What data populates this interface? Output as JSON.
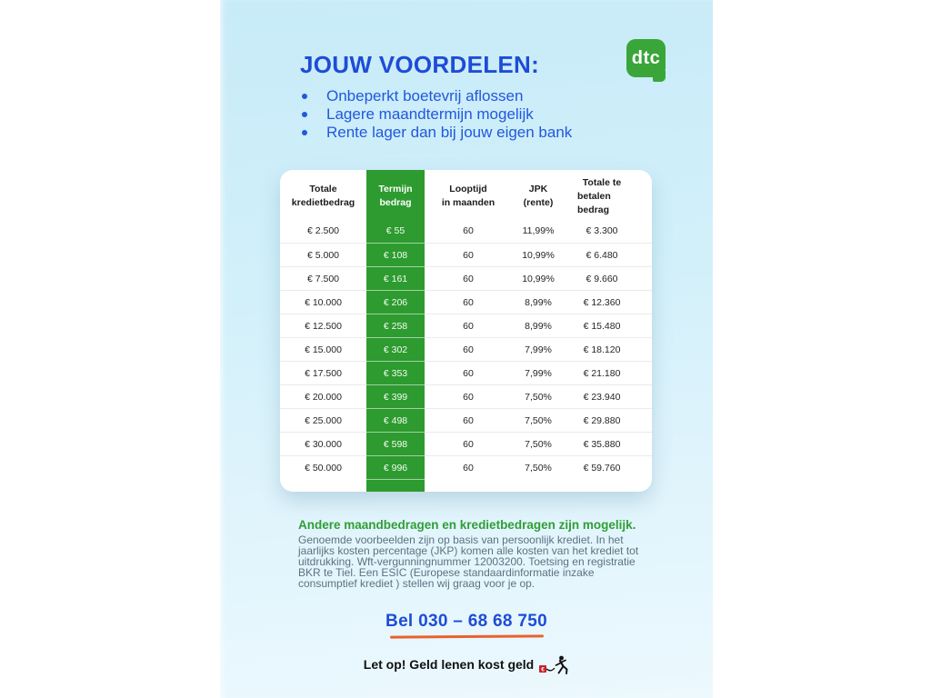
{
  "header": {
    "title": "JOUW VOORDELEN:",
    "benefits": [
      "Onbeperkt boetevrij aflossen",
      "Lagere maandtermijn mogelijk",
      "Rente lager dan bij jouw eigen bank"
    ]
  },
  "logo": {
    "text": "dtc",
    "color": "#3aa639"
  },
  "table": {
    "headers": [
      {
        "top": "Totale",
        "bottom": "kredietbedrag"
      },
      {
        "top": "Termijn",
        "bottom": "bedrag",
        "highlighted": true
      },
      {
        "top": "Looptijd",
        "bottom": "in maanden"
      },
      {
        "top": "JPK",
        "bottom": "(rente)"
      },
      {
        "top": "Totale te",
        "bottom": "betalen bedrag"
      }
    ],
    "columns": [
      "Totale kredietbedrag",
      "Termijn bedrag",
      "Looptijd in maanden",
      "JPK (rente)",
      "Totale te betalen bedrag"
    ],
    "rows": [
      [
        "€ 2.500",
        "€ 55",
        "60",
        "11,99%",
        "€ 3.300"
      ],
      [
        "€ 5.000",
        "€ 108",
        "60",
        "10,99%",
        "€ 6.480"
      ],
      [
        "€ 7.500",
        "€ 161",
        "60",
        "10,99%",
        "€ 9.660"
      ],
      [
        "€ 10.000",
        "€ 206",
        "60",
        "8,99%",
        "€ 12.360"
      ],
      [
        "€ 12.500",
        "€ 258",
        "60",
        "8,99%",
        "€ 15.480"
      ],
      [
        "€ 15.000",
        "€ 302",
        "60",
        "7,99%",
        "€ 18.120"
      ],
      [
        "€ 17.500",
        "€ 353",
        "60",
        "7,99%",
        "€ 21.180"
      ],
      [
        "€ 20.000",
        "€ 399",
        "60",
        "7,50%",
        "€ 23.940"
      ],
      [
        "€ 25.000",
        "€ 498",
        "60",
        "7,50%",
        "€ 29.880"
      ],
      [
        "€ 30.000",
        "€ 598",
        "60",
        "7,50%",
        "€ 35.880"
      ],
      [
        "€ 50.000",
        "€ 996",
        "60",
        "7,50%",
        "€ 59.760"
      ]
    ],
    "highlight_color": "#2d9b2f"
  },
  "footer": {
    "subheading": "Andere maandbedragen en kredietbedragen zijn mogelijk.",
    "disclaimer": "Genoemde voorbeelden zijn op basis van persoonlijk krediet. In het jaarlijks kosten percentage (JKP) komen alle kosten van het krediet tot uitdrukking. Wft-vergunningnummer 12003200. Toetsing en registratie BKR te Tiel. Een ESIC (Europese standaardinformatie inzake consumptief krediet ) stellen wij graag voor je op.",
    "phone": "Bel 030 – 68 68 750",
    "warning": "Let op! Geld lenen kost geld"
  },
  "colors": {
    "title_blue": "#1e4cd7",
    "benefit_blue": "#2158de",
    "green": "#2d9b2f",
    "underline_orange": "#e8632c",
    "disclaimer_gray": "#5c7280",
    "panel_top": "#c7ebf8",
    "panel_bottom": "#ecf9fe"
  }
}
